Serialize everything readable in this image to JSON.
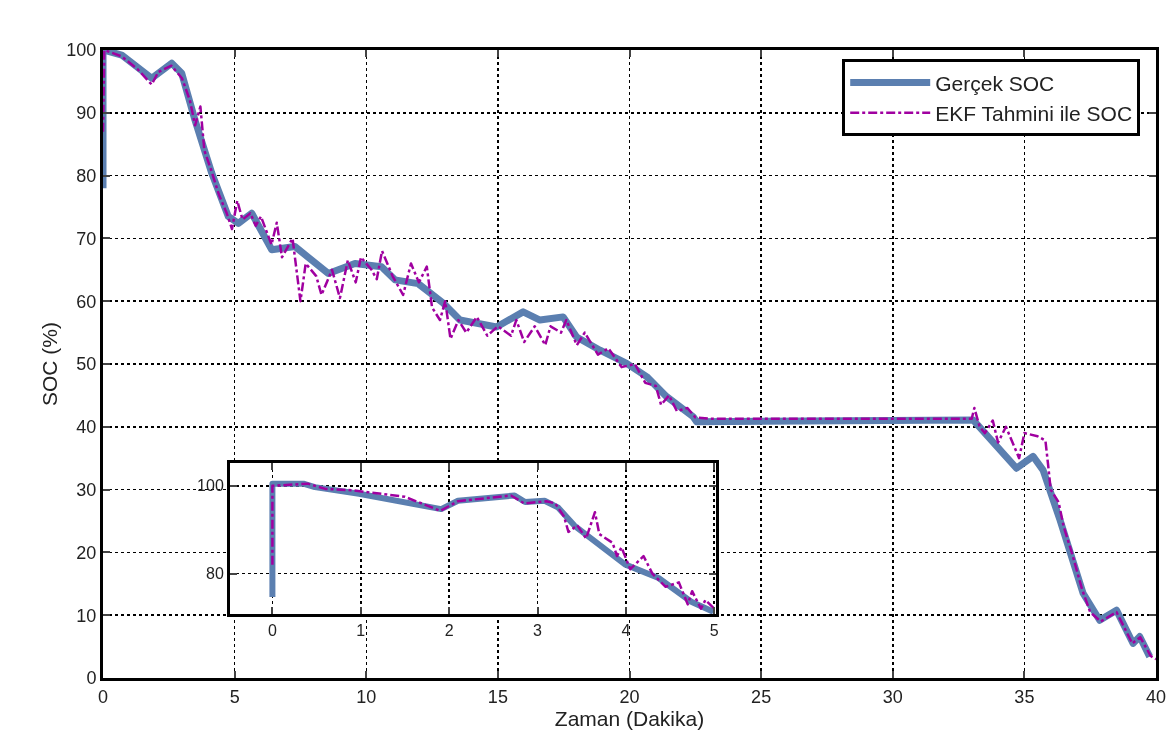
{
  "chart_data": [
    {
      "type": "line",
      "xlabel": "Zaman (Dakika)",
      "ylabel": "SOC (%)",
      "xlim": [
        0,
        40
      ],
      "ylim": [
        0,
        100
      ],
      "xticks": [
        0,
        5,
        10,
        15,
        20,
        25,
        30,
        35,
        40
      ],
      "yticks": [
        0,
        10,
        20,
        30,
        40,
        50,
        60,
        70,
        80,
        90,
        100
      ],
      "grid": true,
      "legend": "top right",
      "marker": "none",
      "series": [
        {
          "name": "Gerçek SOC",
          "color": "#5b7fb0",
          "line_style": "solid",
          "x": [
            0,
            0,
            0.71,
            1.85,
            2.61,
            2.99,
            3.49,
            4.13,
            4.76,
            5.14,
            5.65,
            6.41,
            7.29,
            8.56,
            9.57,
            10.58,
            11.09,
            11.97,
            12.92,
            13.56,
            14.95,
            15.96,
            16.6,
            17.48,
            17.99,
            18.88,
            19.89,
            20.65,
            21.41,
            22.42,
            22.55,
            33.05,
            34.7,
            35.33,
            35.71,
            36.35,
            37.23,
            37.86,
            38.5,
            39.13,
            39.38,
            39.76
          ],
          "values": [
            78,
            100,
            99.2,
            95.5,
            97.9,
            96.3,
            88.9,
            80.4,
            73.5,
            72.4,
            74,
            68.2,
            68.7,
            64.4,
            66,
            65.5,
            63.4,
            62.8,
            59.7,
            57,
            55.9,
            58.3,
            57,
            57.5,
            54.3,
            52.2,
            50.1,
            48,
            44.8,
            41.6,
            40.8,
            41.1,
            33.4,
            35.3,
            33.1,
            25.2,
            13.5,
            9.2,
            10.8,
            5.5,
            6.6,
            3.4
          ]
        },
        {
          "name": "EKF Tahmini ile SOC",
          "color": "#a000a0",
          "line_style": "dashed",
          "x": [
            0,
            0.05,
            0.7,
            1.3,
            1.85,
            2.1,
            2.6,
            3.0,
            3.3,
            3.5,
            3.7,
            3.85,
            4.1,
            4.4,
            4.7,
            4.9,
            5.1,
            5.3,
            5.6,
            5.8,
            6.0,
            6.4,
            6.6,
            6.8,
            7.2,
            7.5,
            7.7,
            8.1,
            8.3,
            8.7,
            9.0,
            9.3,
            9.6,
            9.8,
            10.2,
            10.4,
            10.6,
            11.0,
            11.4,
            11.7,
            12.0,
            12.3,
            12.5,
            12.8,
            13.0,
            13.2,
            13.5,
            13.8,
            14.2,
            14.6,
            15.0,
            15.5,
            15.7,
            16.0,
            16.4,
            16.8,
            17.0,
            17.4,
            17.6,
            18.0,
            18.3,
            18.8,
            19.2,
            19.7,
            20.2,
            20.6,
            21.0,
            21.2,
            21.5,
            21.8,
            22.2,
            22.5,
            23.0,
            33.0,
            33.1,
            33.3,
            33.5,
            33.8,
            34.0,
            34.3,
            34.6,
            34.8,
            35.0,
            35.5,
            35.8,
            35.9,
            36.0,
            36.3,
            36.5,
            36.8,
            37.2,
            37.5,
            37.9,
            38.5,
            39.1,
            39.4,
            39.8,
            40
          ],
          "values": [
            87,
            100,
            99,
            97,
            94.5,
            96.5,
            97.5,
            95.5,
            92,
            88,
            91,
            84,
            81,
            77,
            74,
            71.5,
            76,
            73,
            74,
            72,
            73.5,
            69,
            72.5,
            67,
            70,
            60,
            66,
            64,
            61,
            65,
            60.5,
            66.5,
            63,
            67,
            65,
            63.5,
            68,
            64,
            61,
            66,
            63,
            65.5,
            59,
            57,
            60,
            54,
            57,
            55,
            57.5,
            54.5,
            56,
            54.5,
            57,
            53.5,
            56,
            53,
            56,
            55,
            57,
            53,
            55,
            51.5,
            52.5,
            49.5,
            50,
            47,
            46.5,
            43.5,
            45,
            42.5,
            43,
            41.5,
            41.3,
            41.3,
            43,
            40,
            39,
            41,
            37.5,
            40,
            37,
            35,
            39,
            38.5,
            37.8,
            34,
            30,
            28,
            24,
            20,
            14,
            10.5,
            9,
            10.5,
            5.5,
            6.5,
            3.5,
            3
          ]
        }
      ]
    },
    {
      "type": "line",
      "xlim": [
        -0.48,
        5.02
      ],
      "ylim": [
        70.8,
        105.2
      ],
      "xticks": [
        0,
        1,
        2,
        3,
        4,
        5
      ],
      "yticks": [
        80,
        100
      ],
      "grid": true,
      "marker": "none",
      "series": [
        {
          "color": "#5b7fb0",
          "line_style": "solid",
          "x": [
            0,
            0,
            0.35,
            0.48,
            0.98,
            1.91,
            2.1,
            2.74,
            2.86,
            3.08,
            3.23,
            3.42,
            3.99,
            4.37,
            4.74,
            4.99
          ],
          "values": [
            74.7,
            100.5,
            100.5,
            99.7,
            98.2,
            94.7,
            96.6,
            97.8,
            96.3,
            96.6,
            95.1,
            90.9,
            82.1,
            79,
            73.6,
            71.3
          ]
        },
        {
          "color": "#a000a0",
          "line_style": "dashed",
          "x": [
            0,
            0,
            0.4,
            0.6,
            0.9,
            1.1,
            1.5,
            1.9,
            2.1,
            2.7,
            2.85,
            3.1,
            3.2,
            3.3,
            3.35,
            3.45,
            3.55,
            3.65,
            3.7,
            3.85,
            3.9,
            3.95,
            4.05,
            4.2,
            4.3,
            4.45,
            4.6,
            4.7,
            4.75,
            4.85,
            4.9,
            5.0
          ],
          "values": [
            82,
            100,
            100.5,
            99.3,
            99,
            98.5,
            97.5,
            94.3,
            96.5,
            97.8,
            96,
            96.5,
            96,
            93,
            89.5,
            91,
            88,
            94,
            89,
            87,
            84,
            86,
            81,
            84,
            80,
            77,
            78,
            73,
            76,
            72,
            74,
            72
          ]
        }
      ]
    }
  ]
}
